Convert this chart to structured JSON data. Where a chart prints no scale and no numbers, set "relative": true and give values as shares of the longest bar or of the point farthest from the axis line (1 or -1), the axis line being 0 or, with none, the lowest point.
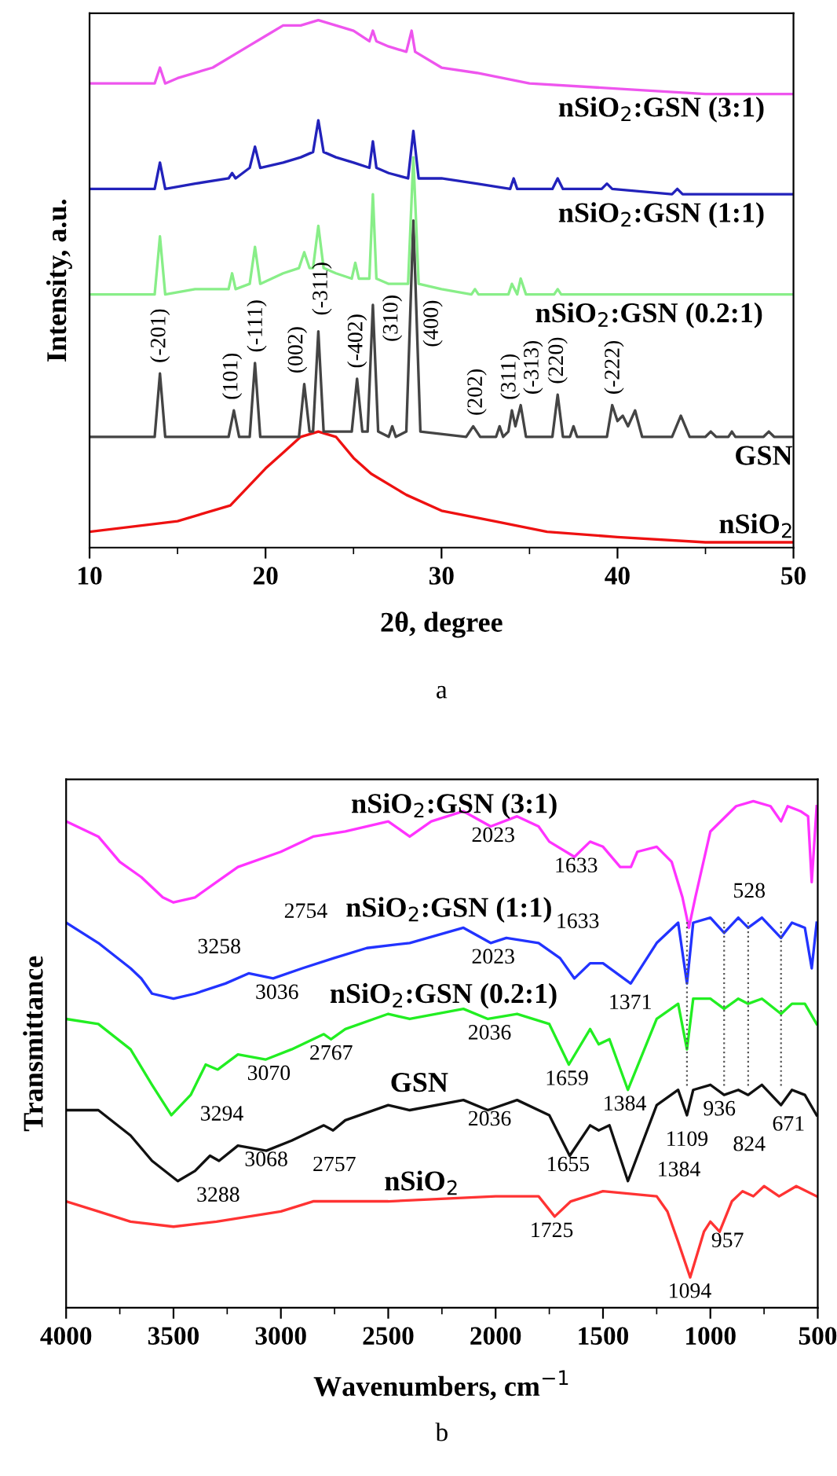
{
  "chart_data": [
    {
      "type": "line",
      "title": "a",
      "xlabel": "2θ, degree",
      "ylabel": "Intensity, a.u.",
      "relative": true,
      "xlim": [
        10,
        50
      ],
      "xticks": [
        10,
        20,
        30,
        40,
        50
      ],
      "grid": false,
      "legend": false,
      "tick_labels": "x",
      "marker": "none",
      "line_style": "solid",
      "series": [
        {
          "name": "nSiO$_{2}$",
          "color": "#ee1111",
          "x": [
            10,
            15,
            18,
            20,
            21,
            22,
            23,
            24,
            25,
            26,
            28,
            30,
            33,
            36,
            40,
            45,
            50
          ],
          "values": [
            0.03,
            0.05,
            0.08,
            0.15,
            0.18,
            0.21,
            0.22,
            0.21,
            0.17,
            0.14,
            0.1,
            0.07,
            0.05,
            0.03,
            0.02,
            0.01,
            0.01
          ]
        },
        {
          "name": "GSN",
          "color": "#444444",
          "x": [
            10,
            13.7,
            14.0,
            14.3,
            17.9,
            18.2,
            18.5,
            19.1,
            19.4,
            19.7,
            21.9,
            22.2,
            22.5,
            22.7,
            23.0,
            23.3,
            24.9,
            25.2,
            25.5,
            25.8,
            26.1,
            26.4,
            27.0,
            27.2,
            27.4,
            28.0,
            28.4,
            28.8,
            31.4,
            31.8,
            32.2,
            33.1,
            33.3,
            33.5,
            33.8,
            34.0,
            34.2,
            34.5,
            34.8,
            36.3,
            36.6,
            36.9,
            37.3,
            37.5,
            37.7,
            39.4,
            39.7,
            40.0,
            40.3,
            40.6,
            41.0,
            41.4,
            43.1,
            43.6,
            44.1,
            45.0,
            45.3,
            45.6,
            46.3,
            46.5,
            46.7,
            48.3,
            48.6,
            48.9,
            50
          ],
          "values": [
            0.21,
            0.21,
            0.33,
            0.21,
            0.21,
            0.26,
            0.21,
            0.21,
            0.35,
            0.21,
            0.21,
            0.31,
            0.22,
            0.22,
            0.41,
            0.22,
            0.22,
            0.32,
            0.22,
            0.22,
            0.46,
            0.22,
            0.21,
            0.23,
            0.21,
            0.22,
            0.62,
            0.22,
            0.21,
            0.23,
            0.21,
            0.21,
            0.23,
            0.21,
            0.22,
            0.26,
            0.23,
            0.27,
            0.21,
            0.21,
            0.29,
            0.21,
            0.21,
            0.23,
            0.21,
            0.21,
            0.27,
            0.24,
            0.25,
            0.23,
            0.26,
            0.21,
            0.21,
            0.25,
            0.21,
            0.21,
            0.22,
            0.21,
            0.21,
            0.22,
            0.21,
            0.21,
            0.22,
            0.21,
            0.21
          ]
        },
        {
          "name": "nSiO$_{2}$:GSN (0.2:1)",
          "color": "#88ee88",
          "x": [
            10,
            13.7,
            14.0,
            14.3,
            16,
            17.9,
            18.1,
            18.3,
            19.1,
            19.4,
            19.7,
            21,
            21.9,
            22.2,
            22.5,
            22.7,
            23.0,
            23.3,
            24,
            24.9,
            25.1,
            25.3,
            25.9,
            26.1,
            26.3,
            27,
            28.1,
            28.4,
            28.7,
            30,
            31.7,
            31.9,
            32.1,
            33.8,
            34.0,
            34.3,
            34.5,
            34.8,
            36.4,
            36.6,
            36.8,
            40,
            50
          ],
          "values": [
            0.48,
            0.48,
            0.59,
            0.48,
            0.49,
            0.49,
            0.52,
            0.49,
            0.5,
            0.57,
            0.5,
            0.52,
            0.53,
            0.56,
            0.53,
            0.53,
            0.61,
            0.53,
            0.52,
            0.51,
            0.54,
            0.51,
            0.51,
            0.67,
            0.51,
            0.5,
            0.5,
            0.74,
            0.5,
            0.49,
            0.48,
            0.49,
            0.48,
            0.48,
            0.5,
            0.48,
            0.51,
            0.48,
            0.48,
            0.49,
            0.48,
            0.48,
            0.48
          ]
        },
        {
          "name": "nSiO$_{2}$:GSN (1:1)",
          "color": "#2222bb",
          "x": [
            10,
            13.7,
            14.0,
            14.3,
            16,
            17.9,
            18.1,
            18.3,
            19.1,
            19.4,
            19.7,
            21,
            22,
            22.7,
            23.0,
            23.3,
            24,
            25,
            25.9,
            26.1,
            26.3,
            27,
            28.1,
            28.4,
            28.7,
            30,
            32,
            33.9,
            34.1,
            34.3,
            36.3,
            36.6,
            36.9,
            39.1,
            39.4,
            39.7,
            43.1,
            43.4,
            43.7,
            45,
            50
          ],
          "values": [
            0.68,
            0.68,
            0.73,
            0.68,
            0.69,
            0.7,
            0.71,
            0.7,
            0.72,
            0.76,
            0.72,
            0.73,
            0.74,
            0.75,
            0.81,
            0.75,
            0.74,
            0.73,
            0.72,
            0.77,
            0.72,
            0.71,
            0.7,
            0.79,
            0.7,
            0.7,
            0.69,
            0.68,
            0.7,
            0.68,
            0.68,
            0.7,
            0.68,
            0.68,
            0.69,
            0.68,
            0.67,
            0.68,
            0.67,
            0.67,
            0.67
          ]
        },
        {
          "name": "nSiO$_{2}$:GSN (3:1)",
          "color": "#ee55ee",
          "x": [
            10,
            13.7,
            14.0,
            14.3,
            15,
            17,
            19,
            20,
            21,
            22,
            23,
            24,
            25,
            25.9,
            26.1,
            26.3,
            27,
            28,
            28.3,
            28.5,
            30,
            32,
            35,
            40,
            45,
            50
          ],
          "values": [
            0.88,
            0.88,
            0.91,
            0.88,
            0.89,
            0.91,
            0.95,
            0.97,
            0.99,
            0.99,
            1.0,
            0.99,
            0.98,
            0.96,
            0.98,
            0.96,
            0.95,
            0.94,
            0.98,
            0.94,
            0.91,
            0.9,
            0.88,
            0.87,
            0.86,
            0.86
          ]
        }
      ],
      "annotations": [
        "(-201)",
        "(101)",
        "(-111)",
        "(002)",
        "(-311)",
        "(-402)",
        "(310)",
        "(400)",
        "(202)",
        "(311)",
        "(-313)",
        "(220)",
        "(-222)"
      ]
    },
    {
      "type": "line",
      "title": "b",
      "xlabel": "Wavenumbers, cm$^{−1}$",
      "ylabel": "Transmittance",
      "relative": true,
      "xlim": [
        4000,
        500
      ],
      "xticks": [
        4000,
        3500,
        3000,
        2500,
        2000,
        1500,
        1000,
        500
      ],
      "grid": false,
      "legend": false,
      "tick_labels": "x",
      "marker": "none",
      "line_style": "solid",
      "series": [
        {
          "name": "nSiO$_{2}$",
          "color": "#ff3333",
          "x": [
            4000,
            3850,
            3700,
            3500,
            3300,
            3000,
            2850,
            2500,
            2000,
            1800,
            1725,
            1650,
            1500,
            1250,
            1200,
            1150,
            1094,
            1030,
            1000,
            957,
            900,
            850,
            800,
            750,
            680,
            600,
            505
          ],
          "values": [
            0.21,
            0.19,
            0.17,
            0.16,
            0.17,
            0.19,
            0.21,
            0.21,
            0.22,
            0.22,
            0.18,
            0.21,
            0.23,
            0.22,
            0.19,
            0.13,
            0.06,
            0.15,
            0.17,
            0.15,
            0.21,
            0.23,
            0.22,
            0.24,
            0.22,
            0.24,
            0.22
          ]
        },
        {
          "name": "GSN",
          "color": "#111111",
          "x": [
            4000,
            3850,
            3700,
            3600,
            3480,
            3400,
            3330,
            3288,
            3200,
            3068,
            2950,
            2800,
            2757,
            2700,
            2500,
            2400,
            2150,
            2036,
            1900,
            1750,
            1655,
            1560,
            1520,
            1470,
            1384,
            1250,
            1150,
            1109,
            1080,
            1000,
            936,
            870,
            824,
            760,
            671,
            620,
            560,
            505
          ],
          "values": [
            0.39,
            0.39,
            0.34,
            0.29,
            0.25,
            0.27,
            0.3,
            0.29,
            0.32,
            0.31,
            0.33,
            0.36,
            0.35,
            0.37,
            0.4,
            0.39,
            0.41,
            0.39,
            0.41,
            0.38,
            0.3,
            0.36,
            0.35,
            0.36,
            0.25,
            0.4,
            0.43,
            0.38,
            0.43,
            0.44,
            0.42,
            0.43,
            0.42,
            0.44,
            0.4,
            0.43,
            0.42,
            0.38
          ]
        },
        {
          "name": "nSiO$_{2}$:GSN (0.2:1)",
          "color": "#22ee22",
          "x": [
            4000,
            3850,
            3700,
            3600,
            3510,
            3420,
            3350,
            3294,
            3200,
            3070,
            2950,
            2800,
            2767,
            2700,
            2500,
            2400,
            2150,
            2036,
            1900,
            1750,
            1659,
            1560,
            1520,
            1470,
            1384,
            1250,
            1150,
            1109,
            1080,
            1000,
            936,
            870,
            824,
            760,
            671,
            620,
            560,
            505
          ],
          "values": [
            0.57,
            0.56,
            0.51,
            0.44,
            0.38,
            0.42,
            0.48,
            0.47,
            0.5,
            0.49,
            0.51,
            0.54,
            0.53,
            0.55,
            0.58,
            0.57,
            0.59,
            0.57,
            0.58,
            0.56,
            0.48,
            0.55,
            0.52,
            0.53,
            0.43,
            0.57,
            0.6,
            0.51,
            0.61,
            0.61,
            0.59,
            0.61,
            0.6,
            0.61,
            0.58,
            0.6,
            0.6,
            0.56
          ]
        },
        {
          "name": "nSiO$_{2}$:GSN (1:1)",
          "color": "#2233ff",
          "x": [
            4000,
            3850,
            3700,
            3650,
            3600,
            3500,
            3400,
            3258,
            3150,
            3036,
            2900,
            2754,
            2600,
            2400,
            2150,
            2023,
            1950,
            1800,
            1700,
            1633,
            1560,
            1500,
            1371,
            1250,
            1150,
            1109,
            1080,
            1000,
            936,
            870,
            824,
            760,
            671,
            620,
            560,
            528,
            505
          ],
          "values": [
            0.76,
            0.72,
            0.67,
            0.65,
            0.62,
            0.61,
            0.62,
            0.64,
            0.66,
            0.65,
            0.67,
            0.69,
            0.71,
            0.72,
            0.75,
            0.72,
            0.73,
            0.72,
            0.69,
            0.65,
            0.68,
            0.68,
            0.64,
            0.72,
            0.76,
            0.64,
            0.76,
            0.77,
            0.74,
            0.77,
            0.75,
            0.77,
            0.73,
            0.76,
            0.75,
            0.67,
            0.76
          ]
        },
        {
          "name": "nSiO$_{2}$:GSN (3:1)",
          "color": "#ff33ff",
          "x": [
            4000,
            3850,
            3750,
            3650,
            3550,
            3500,
            3400,
            3300,
            3200,
            3000,
            2850,
            2700,
            2500,
            2400,
            2300,
            2150,
            2023,
            1900,
            1800,
            1750,
            1633,
            1560,
            1500,
            1420,
            1370,
            1340,
            1250,
            1180,
            1130,
            1100,
            1070,
            1000,
            880,
            800,
            720,
            671,
            640,
            580,
            545,
            528,
            505
          ],
          "values": [
            0.96,
            0.93,
            0.88,
            0.85,
            0.81,
            0.8,
            0.81,
            0.84,
            0.87,
            0.9,
            0.93,
            0.94,
            0.96,
            0.93,
            0.96,
            0.98,
            0.95,
            0.97,
            0.95,
            0.92,
            0.89,
            0.92,
            0.91,
            0.87,
            0.87,
            0.9,
            0.91,
            0.88,
            0.81,
            0.75,
            0.81,
            0.94,
            0.99,
            1.0,
            0.99,
            0.96,
            0.99,
            0.98,
            0.97,
            0.84,
            0.99
          ]
        }
      ],
      "ref_lines": [
        {
          "axis": "x",
          "value": 1109,
          "color": "#555555",
          "line_style": "dotted"
        },
        {
          "axis": "x",
          "value": 936,
          "color": "#555555",
          "line_style": "dotted"
        },
        {
          "axis": "x",
          "value": 824,
          "color": "#555555",
          "line_style": "dotted"
        },
        {
          "axis": "x",
          "value": 671,
          "color": "#555555",
          "line_style": "dotted"
        }
      ],
      "annotations": [
        "2023",
        "1633",
        "528",
        "3258",
        "2754",
        "3036",
        "2023",
        "1633",
        "1371",
        "3294",
        "3070",
        "2767",
        "2036",
        "1659",
        "1384",
        "3288",
        "3068",
        "2757",
        "2036",
        "1655",
        "1384",
        "1109",
        "936",
        "824",
        "671",
        "1725",
        "957",
        "1094"
      ]
    }
  ]
}
